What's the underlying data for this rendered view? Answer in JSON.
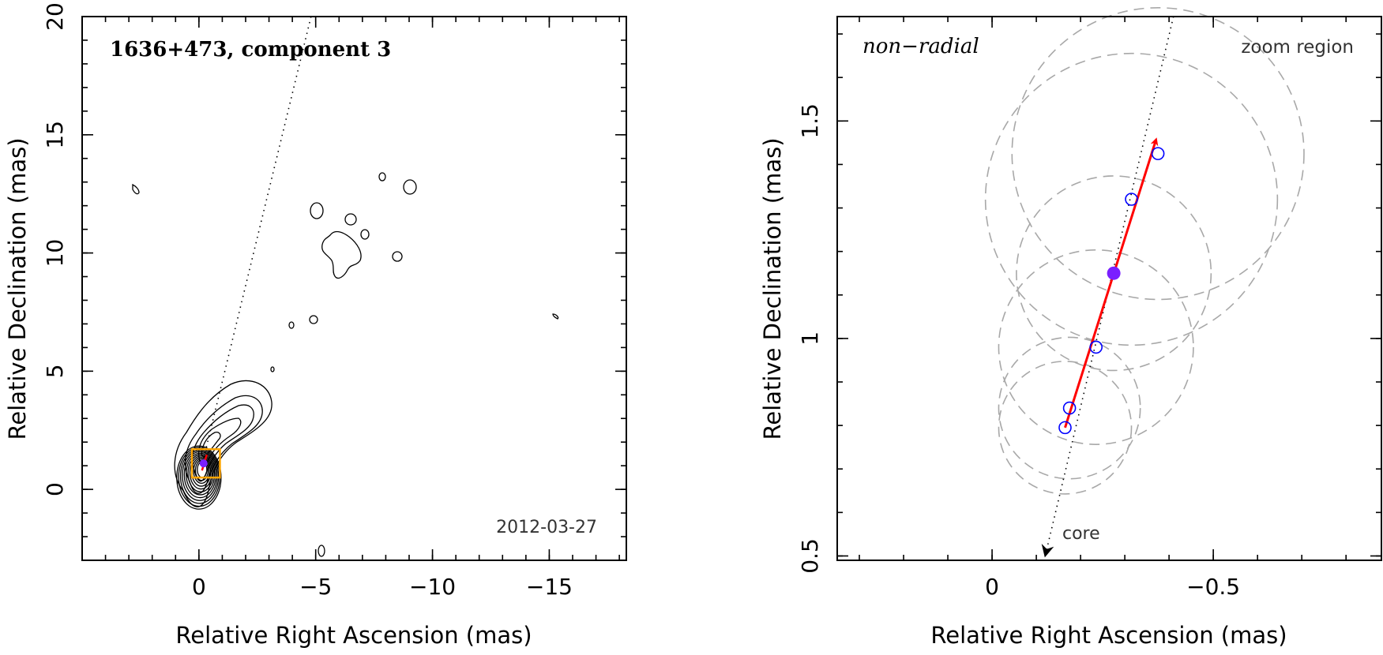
{
  "chart_data": [
    {
      "type": "scatter",
      "panel": "left",
      "title": "1636+473, component 3",
      "date": "2012-03-27",
      "xlabel": "Relative Right Ascension (mas)",
      "ylabel": "Relative Declination (mas)",
      "xlim": [
        5,
        -18.3
      ],
      "ylim": [
        -3,
        20
      ],
      "xticks": [
        0,
        -5,
        -10,
        -15
      ],
      "xtick_labels": [
        "0",
        "−5",
        "−10",
        "−15"
      ],
      "yticks": [
        0,
        5,
        10,
        15,
        20
      ],
      "ytick_labels": [
        "0",
        "5",
        "10",
        "15",
        "20"
      ],
      "ridge_line": [
        [
          -0.15,
          1.1
        ],
        [
          -4.8,
          20
        ]
      ],
      "component_position": [
        -0.2,
        1.1
      ],
      "zoom_box": {
        "x": [
          0.3,
          -0.9
        ],
        "y": [
          0.5,
          1.7
        ]
      },
      "contour_features": [
        {
          "name": "core-jet",
          "levels": 12
        },
        {
          "name": "diffuse-emission",
          "levels": 1
        },
        {
          "name": "noise-islands",
          "levels": 1
        }
      ]
    },
    {
      "type": "scatter",
      "panel": "right",
      "title": "non−radial",
      "region_label": "zoom region",
      "core_label": "core",
      "xlabel": "Relative Right Ascension (mas)",
      "ylabel": "Relative Declination (mas)",
      "xlim": [
        0.35,
        -0.88
      ],
      "ylim": [
        0.49,
        1.74
      ],
      "xticks": [
        0,
        -0.5
      ],
      "xtick_labels": [
        "0",
        "−0.5"
      ],
      "yticks": [
        0.5,
        1,
        1.5
      ],
      "ytick_labels": [
        "0.5",
        "1",
        "1.5"
      ],
      "series": [
        {
          "points": [
            {
              "x": -0.165,
              "y": 0.795,
              "r": 0.15
            },
            {
              "x": -0.175,
              "y": 0.84,
              "r": 0.16
            },
            {
              "x": -0.235,
              "y": 0.98,
              "r": 0.22
            },
            {
              "x": -0.275,
              "y": 1.15,
              "r": 0.22,
              "current": true
            },
            {
              "x": -0.315,
              "y": 1.32,
              "r": 0.33
            },
            {
              "x": -0.375,
              "y": 1.425,
              "r": 0.33
            }
          ]
        }
      ],
      "motion_vector": {
        "from": [
          -0.165,
          0.795
        ],
        "to": [
          -0.37,
          1.455
        ]
      },
      "ridge_line": [
        [
          -0.12,
          0.5
        ],
        [
          -0.41,
          1.74
        ]
      ],
      "colors": {
        "vector": "#ff0000",
        "point": "#0000ff",
        "current": "#7a1fff",
        "zoom_box": "#ffa500",
        "ellipse": "#a8a8a8"
      }
    }
  ]
}
